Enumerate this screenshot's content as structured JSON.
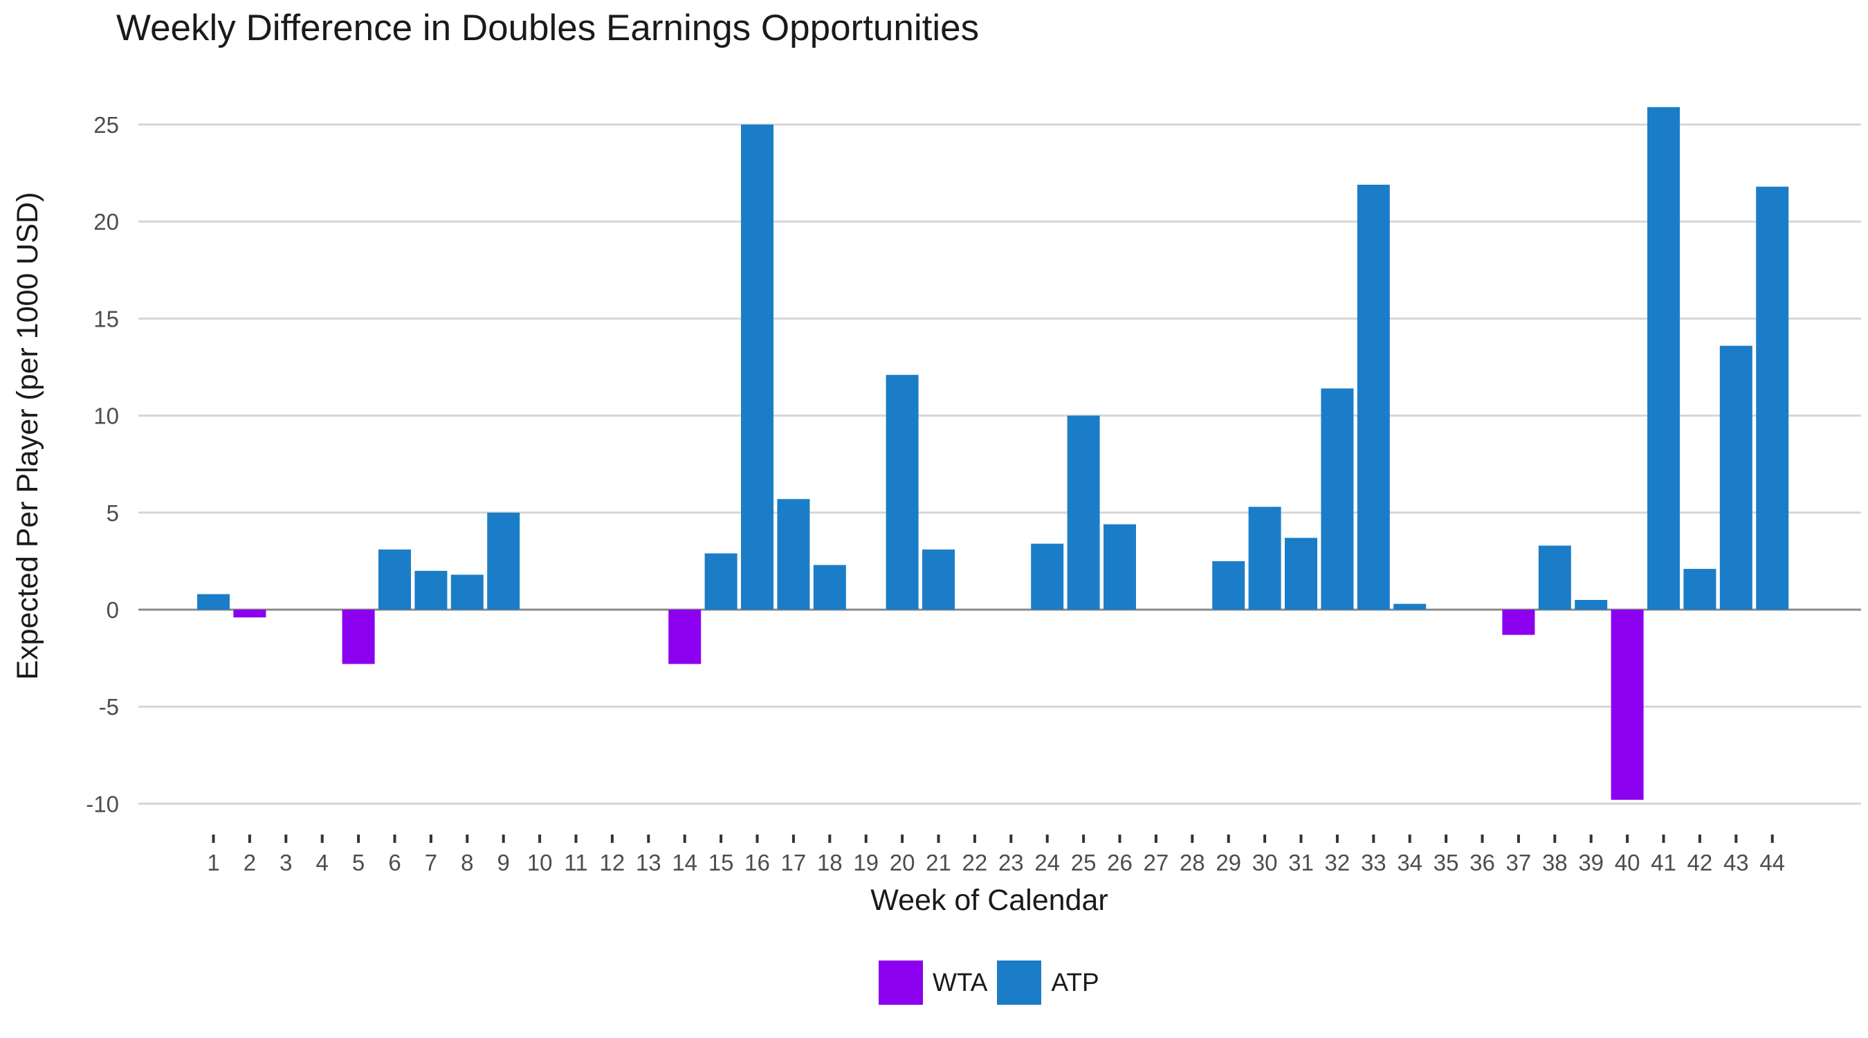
{
  "chart_data": {
    "type": "bar",
    "title": "Weekly Difference in Doubles Earnings Opportunities",
    "xlabel": "Week of Calendar",
    "ylabel": "Expected Per Player (per 1000 USD)",
    "ylim": [
      -11.2,
      27.5
    ],
    "yticks": [
      -10,
      -5,
      0,
      5,
      10,
      15,
      20,
      25
    ],
    "ytick_labels": [
      "-10",
      "-5",
      "0",
      "5",
      "10",
      "15",
      "20",
      "25"
    ],
    "grid": true,
    "legend_position": "bottom",
    "categories": [
      "1",
      "2",
      "3",
      "4",
      "5",
      "6",
      "7",
      "8",
      "9",
      "10",
      "11",
      "12",
      "13",
      "14",
      "15",
      "16",
      "17",
      "18",
      "19",
      "20",
      "21",
      "22",
      "23",
      "24",
      "25",
      "26",
      "27",
      "28",
      "29",
      "30",
      "31",
      "32",
      "33",
      "34",
      "35",
      "36",
      "37",
      "38",
      "39",
      "40",
      "41",
      "42",
      "43",
      "44"
    ],
    "values": [
      0.8,
      -0.4,
      0,
      0,
      -2.8,
      3.1,
      2.0,
      1.8,
      5.0,
      0,
      0,
      0,
      0,
      -2.8,
      2.9,
      25.0,
      5.7,
      2.3,
      0,
      12.1,
      3.1,
      0,
      0,
      3.4,
      10.0,
      4.4,
      0,
      0,
      2.5,
      5.3,
      3.7,
      11.4,
      21.9,
      0.3,
      0,
      0,
      -1.3,
      3.3,
      0.5,
      -9.8,
      25.9,
      2.1,
      13.6,
      21.8
    ],
    "series": [
      {
        "name": "WTA",
        "color": "#8B00EE"
      },
      {
        "name": "ATP",
        "color": "#1B7DC7"
      }
    ]
  }
}
